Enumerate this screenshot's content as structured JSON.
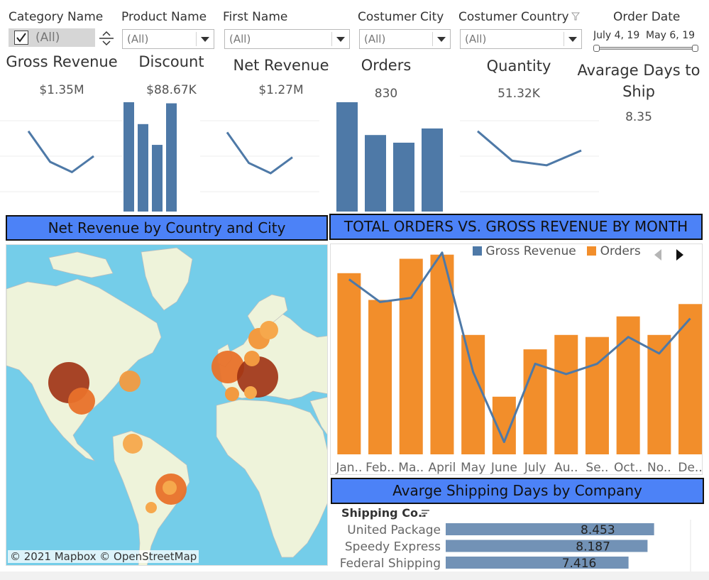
{
  "filters": {
    "category": {
      "label": "Category Name",
      "value": "(All)"
    },
    "product": {
      "label": "Product Name",
      "value": "(All)"
    },
    "first_name": {
      "label": "First Name",
      "value": "(All)"
    },
    "city": {
      "label": "Costumer City",
      "value": "(All)"
    },
    "country": {
      "label": "Costumer Country",
      "value": "(All)"
    },
    "order_date": {
      "label": "Order Date",
      "start": "July 4, 19",
      "end": "May 6, 19"
    }
  },
  "kpis": {
    "gross_revenue": {
      "title": "Gross Revenue",
      "value": "$1.35M"
    },
    "discount": {
      "title": "Discount",
      "value": "$88.67K"
    },
    "net_revenue": {
      "title": "Net Revenue",
      "value": "$1.27M"
    },
    "orders": {
      "title": "Orders",
      "value": "830"
    },
    "quantity": {
      "title": "Quantity",
      "value": "51.32K"
    },
    "avg_days": {
      "title_line1": "Avarage Days to",
      "title_line2": "Ship",
      "value": "8.35"
    }
  },
  "sparklines": {
    "gross_revenue": [
      0.72,
      0.45,
      0.36,
      0.5
    ],
    "discount": [
      1.0,
      0.8,
      0.61,
      0.99
    ],
    "net_revenue": [
      0.71,
      0.44,
      0.35,
      0.49
    ],
    "orders": [
      1.0,
      0.7,
      0.63,
      0.76
    ],
    "quantity": [
      0.72,
      0.46,
      0.42,
      0.55
    ]
  },
  "map": {
    "title": "Net Revenue by Country and City",
    "attribution": "© 2021 Mapbox © OpenStreetMap",
    "colors": {
      "ocean": "#74cde9",
      "land": "#eef3da",
      "bubble_high": "#9e3112",
      "bubble_mid": "#e8712a",
      "bubble_low": "#f6a84c"
    }
  },
  "combo": {
    "title": "TOTAL ORDERS VS. GROSS REVENUE BY MONTH",
    "legend": [
      {
        "name": "Gross Revenue",
        "color": "#4e79a7"
      },
      {
        "name": "Orders",
        "color": "#f28e2b"
      }
    ]
  },
  "chart_data": [
    {
      "type": "bar",
      "categories": [
        "Jan..",
        "Feb..",
        "Ma..",
        "April",
        "May",
        "June",
        "July",
        "Au..",
        "Se..",
        "Oct..",
        "No..",
        "De.."
      ],
      "series": [
        {
          "name": "Orders",
          "type": "bar",
          "values": [
            88,
            75,
            95,
            97,
            58,
            28,
            51,
            58,
            57,
            67,
            58,
            73
          ]
        },
        {
          "name": "Gross Revenue",
          "type": "line",
          "values": [
            85,
            74,
            76,
            98,
            40,
            6,
            44,
            39,
            44,
            57,
            49,
            66
          ]
        }
      ],
      "ylim": [
        0,
        100
      ],
      "legend": "top-right"
    },
    {
      "type": "bar",
      "title": "Avarge Shipping Days by Company",
      "column_header": "Shipping Co..",
      "categories": [
        "United Package",
        "Speedy Express",
        "Federal Shipping"
      ],
      "values": [
        8.453,
        8.187,
        7.416
      ],
      "labels": [
        "8.453",
        "8.187",
        "7.416"
      ],
      "xlim": [
        0,
        9.5
      ]
    }
  ]
}
